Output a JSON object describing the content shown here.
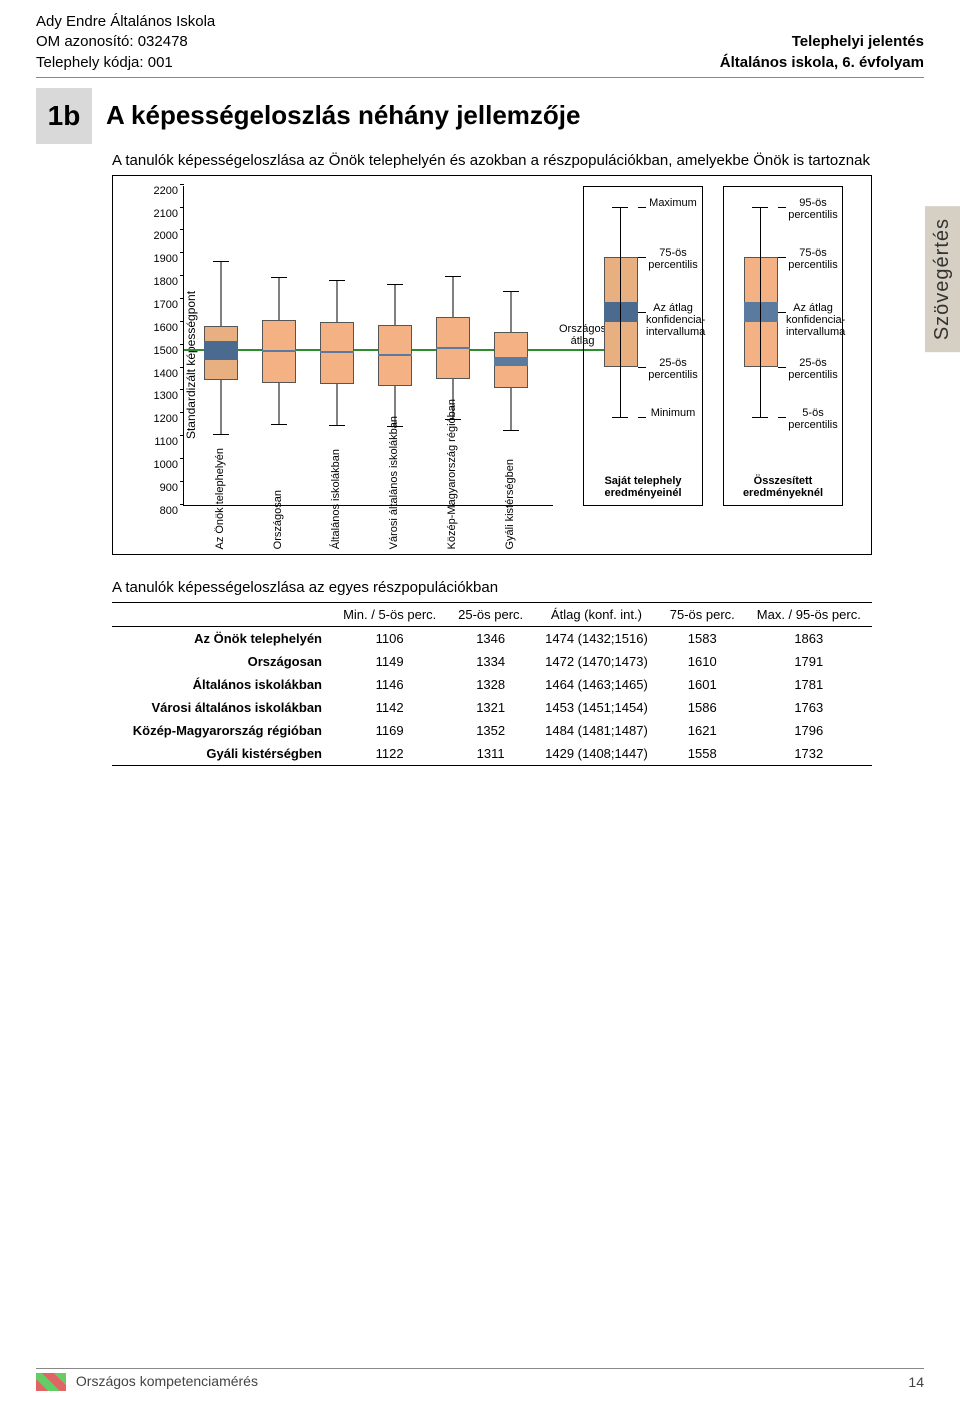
{
  "header": {
    "school": "Ady Endre Általános Iskola",
    "om_id": "OM azonosító: 032478",
    "site_code": "Telephely kódja: 001",
    "report": "Telephelyi jelentés",
    "grade": "Általános iskola, 6. évfolyam"
  },
  "section": {
    "badge": "1b",
    "title": "A képességeloszlás néhány jellemzője",
    "subtitle": "A tanulók képességeloszlása az Önök telephelyén és azokban a részpopulációkban, amelyekbe Önök is tartoznak"
  },
  "side_tab": "Szövegértés",
  "chart": {
    "type": "boxplot",
    "y_axis_label": "Standardizált képességpont",
    "y_ticks": [
      800,
      900,
      1000,
      1100,
      1200,
      1300,
      1400,
      1500,
      1600,
      1700,
      1800,
      1900,
      2000,
      2100,
      2200
    ],
    "ylim": [
      800,
      2200
    ],
    "plot_bg": "#ffffff",
    "grid_color": "#000000",
    "box_fill": "#f4b183",
    "box_ci_fill": "#5a7aa0",
    "own_box_fill": "#e8b080",
    "own_ci_fill": "#4a6a90",
    "national_avg_color": "#2e8b2e",
    "national_avg_label": "Országos átlag",
    "national_avg_value": 1472,
    "series": [
      {
        "label": "Az Önök telephelyén",
        "min": 1106,
        "p25": 1346,
        "ci_lo": 1432,
        "ci_hi": 1516,
        "p75": 1583,
        "max": 1863,
        "is_own": true
      },
      {
        "label": "Országosan",
        "min": 1149,
        "p25": 1334,
        "ci_lo": 1470,
        "ci_hi": 1473,
        "p75": 1610,
        "max": 1791
      },
      {
        "label": "Általános iskolákban",
        "min": 1146,
        "p25": 1328,
        "ci_lo": 1463,
        "ci_hi": 1465,
        "p75": 1601,
        "max": 1781
      },
      {
        "label": "Városi általános iskolákban",
        "min": 1142,
        "p25": 1321,
        "ci_lo": 1451,
        "ci_hi": 1454,
        "p75": 1586,
        "max": 1763
      },
      {
        "label": "Közép-Magyarország régióban",
        "min": 1169,
        "p25": 1352,
        "ci_lo": 1481,
        "ci_hi": 1487,
        "p75": 1621,
        "max": 1796
      },
      {
        "label": "Gyáli kistérségben",
        "min": 1122,
        "p25": 1311,
        "ci_lo": 1408,
        "ci_hi": 1447,
        "p75": 1558,
        "max": 1732
      }
    ],
    "legend_own": {
      "title": "Saját telephely eredményeinél",
      "max": "Maximum",
      "p75": "75-ös percentilis",
      "ci": "Az átlag konfidencia-intervalluma",
      "p25": "25-ös percentilis",
      "min": "Minimum"
    },
    "legend_agg": {
      "title": "Összesített eredményeknél",
      "p95": "95-ös percentilis",
      "p75": "75-ös percentilis",
      "ci": "Az átlag konfidencia-intervalluma",
      "p25": "25-ös percentilis",
      "p5": "5-ös percentilis"
    }
  },
  "table": {
    "title": "A tanulók képességeloszlása az egyes részpopulációkban",
    "columns": [
      "",
      "Min. / 5-ös perc.",
      "25-ös perc.",
      "Átlag (konf. int.)",
      "75-ös perc.",
      "Max. / 95-ös perc."
    ],
    "rows": [
      [
        "Az Önök telephelyén",
        "1106",
        "1346",
        "1474 (1432;1516)",
        "1583",
        "1863"
      ],
      [
        "Országosan",
        "1149",
        "1334",
        "1472 (1470;1473)",
        "1610",
        "1791"
      ],
      [
        "Általános iskolákban",
        "1146",
        "1328",
        "1464 (1463;1465)",
        "1601",
        "1781"
      ],
      [
        "Városi általános iskolákban",
        "1142",
        "1321",
        "1453 (1451;1454)",
        "1586",
        "1763"
      ],
      [
        "Közép-Magyarország régióban",
        "1169",
        "1352",
        "1484 (1481;1487)",
        "1621",
        "1796"
      ],
      [
        "Gyáli kistérségben",
        "1122",
        "1311",
        "1429 (1408;1447)",
        "1558",
        "1732"
      ]
    ]
  },
  "footer": {
    "text": "Országos kompetenciamérés",
    "page": "14"
  }
}
